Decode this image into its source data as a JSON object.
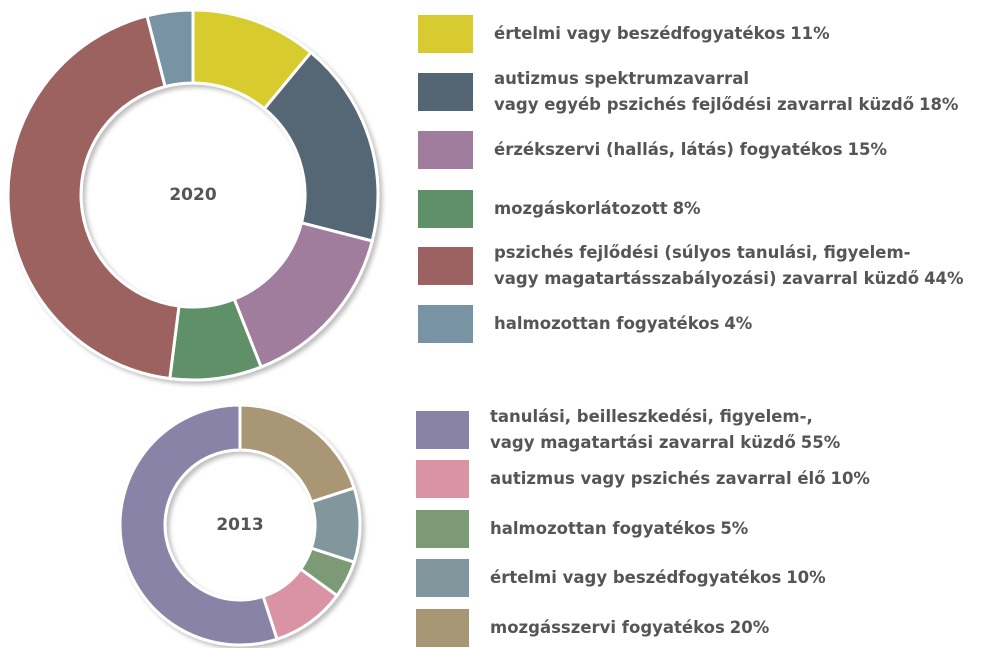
{
  "chart_data": [
    {
      "type": "donut",
      "title": "2020",
      "direction": "clockwise",
      "categories": [
        "értelmi vagy beszédfogyatékos",
        "autizmus spektrumzavarral\nvagy egyéb pszichés fejlődési zavarral küzdő",
        "érzékszervi (hallás, látás) fogyatékos",
        "mozgáskorlátozott",
        "pszichés fejlődési (súlyos tanulási, figyelem-\nvagy magatartásszabályozási) zavarral küzdő",
        "halmozottan fogyatékos"
      ],
      "values": [
        11,
        18,
        15,
        8,
        44,
        4
      ],
      "value_labels": [
        "11%",
        "18%",
        "15%",
        "8%",
        "44%",
        "4%"
      ],
      "colors": [
        "#d8cb2f",
        "#546674",
        "#a07c9d",
        "#609068",
        "#9c6261",
        "#7793a4"
      ]
    },
    {
      "type": "donut",
      "title": "2013",
      "direction": "counterclockwise",
      "categories": [
        "tanulási, beilleszkedési, figyelem-,\nvagy magatartási zavarral küzdő",
        "autizmus vagy pszichés zavarral élő",
        "halmozottan fogyatékos",
        "értelmi vagy beszédfogyatékos",
        "mozgásszervi fogyatékos"
      ],
      "values": [
        55,
        10,
        5,
        10,
        20
      ],
      "value_labels": [
        "55%",
        "10%",
        "5%",
        "10%",
        "20%"
      ],
      "colors": [
        "#8a83a8",
        "#d993a4",
        "#7b9a75",
        "#81969d",
        "#a89675"
      ]
    }
  ]
}
